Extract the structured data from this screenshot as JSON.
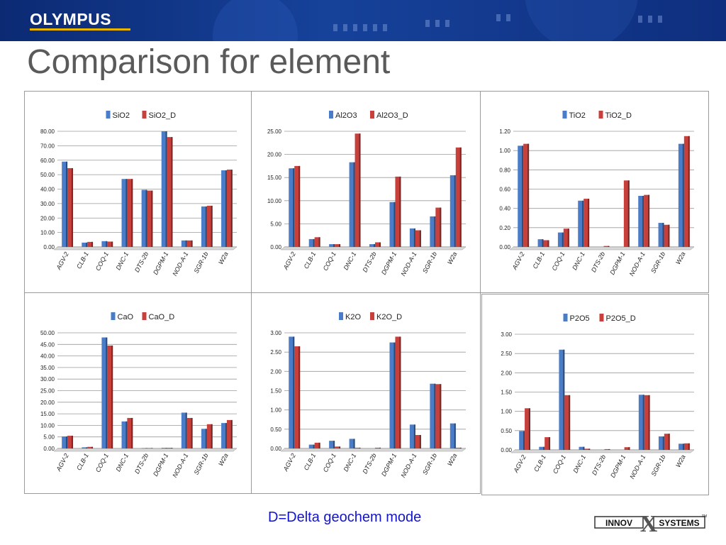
{
  "header": {
    "logo_text": "OLYMPUS"
  },
  "slide": {
    "title": "Comparison for element",
    "caption": "D=Delta geochem mode"
  },
  "footer_logo": {
    "left": "INNOV",
    "middle": "X",
    "right": "SYSTEMS",
    "tm": "TM"
  },
  "colors": {
    "series_a": "#4a7cc7",
    "series_b": "#c8403c",
    "title": "#5a5a5a",
    "caption": "#1414c8"
  },
  "chart_data": [
    {
      "type": "bar",
      "categories": [
        "AGV-2",
        "CLB-1",
        "COQ-1",
        "DNC-1",
        "DTS-2b",
        "DGPM-1",
        "NOD-A-1",
        "SGR-1b",
        "W2a"
      ],
      "series": [
        {
          "name": "SiO2",
          "values": [
            59,
            3,
            4,
            47,
            39.5,
            80,
            4.5,
            28,
            53
          ]
        },
        {
          "name": "SiO2_D",
          "values": [
            54.5,
            3.5,
            3.7,
            47,
            39,
            76,
            4.5,
            28.5,
            53.5
          ]
        }
      ],
      "ylim": [
        0,
        80
      ],
      "yticks": [
        "0.00",
        "10.00",
        "20.00",
        "30.00",
        "40.00",
        "50.00",
        "60.00",
        "70.00",
        "80.00"
      ],
      "legend": "top"
    },
    {
      "type": "bar",
      "categories": [
        "AGV-2",
        "CLB-1",
        "COQ-1",
        "DNC-1",
        "DTS-2b",
        "DGPM-1",
        "NOD-A-1",
        "SGR-1b",
        "W2a"
      ],
      "series": [
        {
          "name": "Al2O3",
          "values": [
            17,
            1.7,
            0.6,
            18.3,
            0.6,
            9.7,
            4,
            6.6,
            15.5
          ]
        },
        {
          "name": "Al2O3_D",
          "values": [
            17.5,
            2.1,
            0.6,
            24.5,
            1.0,
            15.2,
            3.6,
            8.5,
            21.5
          ]
        }
      ],
      "ylim": [
        0,
        25
      ],
      "yticks": [
        "0.00",
        "5.00",
        "10.00",
        "15.00",
        "20.00",
        "25.00"
      ],
      "legend": "top"
    },
    {
      "type": "bar",
      "categories": [
        "AGV-2",
        "CLB-1",
        "COQ-1",
        "DNC-1",
        "DTS-2b",
        "DGPM-1",
        "NOD-A-1",
        "SGR-1b",
        "W2a"
      ],
      "series": [
        {
          "name": "TiO2",
          "values": [
            1.05,
            0.08,
            0.15,
            0.48,
            0,
            0,
            0.53,
            0.25,
            1.07
          ]
        },
        {
          "name": "TiO2_D",
          "values": [
            1.07,
            0.07,
            0.19,
            0.5,
            0.01,
            0.69,
            0.54,
            0.23,
            1.15
          ]
        }
      ],
      "ylim": [
        0,
        1.2
      ],
      "yticks": [
        "0.00",
        "0.20",
        "0.40",
        "0.60",
        "0.80",
        "1.00",
        "1.20"
      ],
      "legend": "top"
    },
    {
      "type": "bar",
      "categories": [
        "AGV-2",
        "CLB-1",
        "COQ-1",
        "DNC-1",
        "DTS-2b",
        "DGPM-1",
        "NOD-A-1",
        "SGR-1b",
        "W2a"
      ],
      "series": [
        {
          "name": "CaO",
          "values": [
            5.2,
            0.5,
            48,
            11.7,
            0.2,
            0.3,
            15.5,
            8.5,
            11
          ]
        },
        {
          "name": "CaO_D",
          "values": [
            5.5,
            0.7,
            44.5,
            13.2,
            0.2,
            0.3,
            13.2,
            10.5,
            12.3
          ]
        }
      ],
      "ylim": [
        0,
        50
      ],
      "yticks": [
        "0.00",
        "5.00",
        "10.00",
        "15.00",
        "20.00",
        "25.00",
        "30.00",
        "35.00",
        "40.00",
        "45.00",
        "50.00"
      ],
      "legend": "top"
    },
    {
      "type": "bar",
      "categories": [
        "AGV-2",
        "CLB-1",
        "COQ-1",
        "DNC-1",
        "DTS-2b",
        "DGPM-1",
        "NOD-A-1",
        "SGR-1b",
        "W2a"
      ],
      "series": [
        {
          "name": "K2O",
          "values": [
            2.9,
            0.1,
            0.2,
            0.25,
            0,
            2.75,
            0.62,
            1.68,
            0.65
          ]
        },
        {
          "name": "K2O_D",
          "values": [
            2.65,
            0.15,
            0.05,
            0.02,
            0.02,
            2.9,
            0.35,
            1.67,
            0.02
          ]
        }
      ],
      "ylim": [
        0,
        3
      ],
      "yticks": [
        "0.00",
        "0.50",
        "1.00",
        "1.50",
        "2.00",
        "2.50",
        "3.00"
      ],
      "legend": "top"
    },
    {
      "type": "bar",
      "categories": [
        "AGV-2",
        "CLB-1",
        "COQ-1",
        "DNC-1",
        "DTS-2b",
        "DGPM-1",
        "NOD-A-1",
        "SGR-1b",
        "W2a"
      ],
      "series": [
        {
          "name": "P2O5",
          "values": [
            0.49,
            0.08,
            2.6,
            0.08,
            0,
            0,
            1.43,
            0.35,
            0.16
          ]
        },
        {
          "name": "P2O5_D",
          "values": [
            1.08,
            0.33,
            1.42,
            0.03,
            0.02,
            0.07,
            1.42,
            0.42,
            0.17
          ]
        }
      ],
      "ylim": [
        0,
        3
      ],
      "yticks": [
        "0.00",
        "0.50",
        "1.00",
        "1.50",
        "2.00",
        "2.50",
        "3.00"
      ],
      "legend": "top"
    }
  ]
}
